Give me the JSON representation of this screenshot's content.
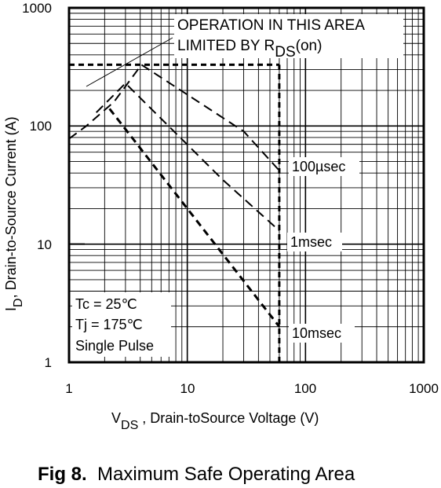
{
  "chart_data": {
    "type": "line",
    "x_scale": "log",
    "y_scale": "log",
    "xlim": [
      1,
      1000
    ],
    "ylim": [
      1,
      1000
    ],
    "grid": true,
    "x_ticks": [
      "1",
      "10",
      "100",
      "1000"
    ],
    "y_ticks": [
      "1",
      "10",
      "100",
      "1000"
    ],
    "xlabel": {
      "main": "V",
      "sub": "DS",
      "rest": " , Drain-toSource Voltage (V)"
    },
    "ylabel": {
      "main": "I",
      "sub": "D",
      "rest": ",  Drain-to-Source Current (A)"
    },
    "series": [
      {
        "name": "100µsec",
        "x": [
          1,
          1.4,
          2.4,
          4.1,
          30,
          60
        ],
        "y": [
          78,
          100,
          160,
          330,
          90,
          42
        ]
      },
      {
        "name": "1msec",
        "x": [
          1.7,
          3.0,
          20,
          60
        ],
        "y": [
          130,
          230,
          35,
          13
        ]
      },
      {
        "name": "10msec",
        "x": [
          2.2,
          60
        ],
        "y": [
          140,
          2
        ]
      }
    ],
    "limits": [
      {
        "name": "current limit",
        "x": [
          1,
          60
        ],
        "y": [
          330,
          330
        ]
      },
      {
        "name": "voltage limit",
        "x": [
          60,
          60
        ],
        "y": [
          1,
          330
        ]
      }
    ],
    "annotations": {
      "operation_line1": "OPERATION IN THIS AREA",
      "operation_line2_prefix": "LIMITED BY R",
      "operation_sub": "DS",
      "operation_suffix": "(on)",
      "conditions": [
        "Tc = 25℃",
        "Tj = 175℃",
        "Single Pulse"
      ]
    }
  },
  "caption": {
    "fig": "Fig 8.",
    "text": "Maximum Safe Operating Area"
  }
}
